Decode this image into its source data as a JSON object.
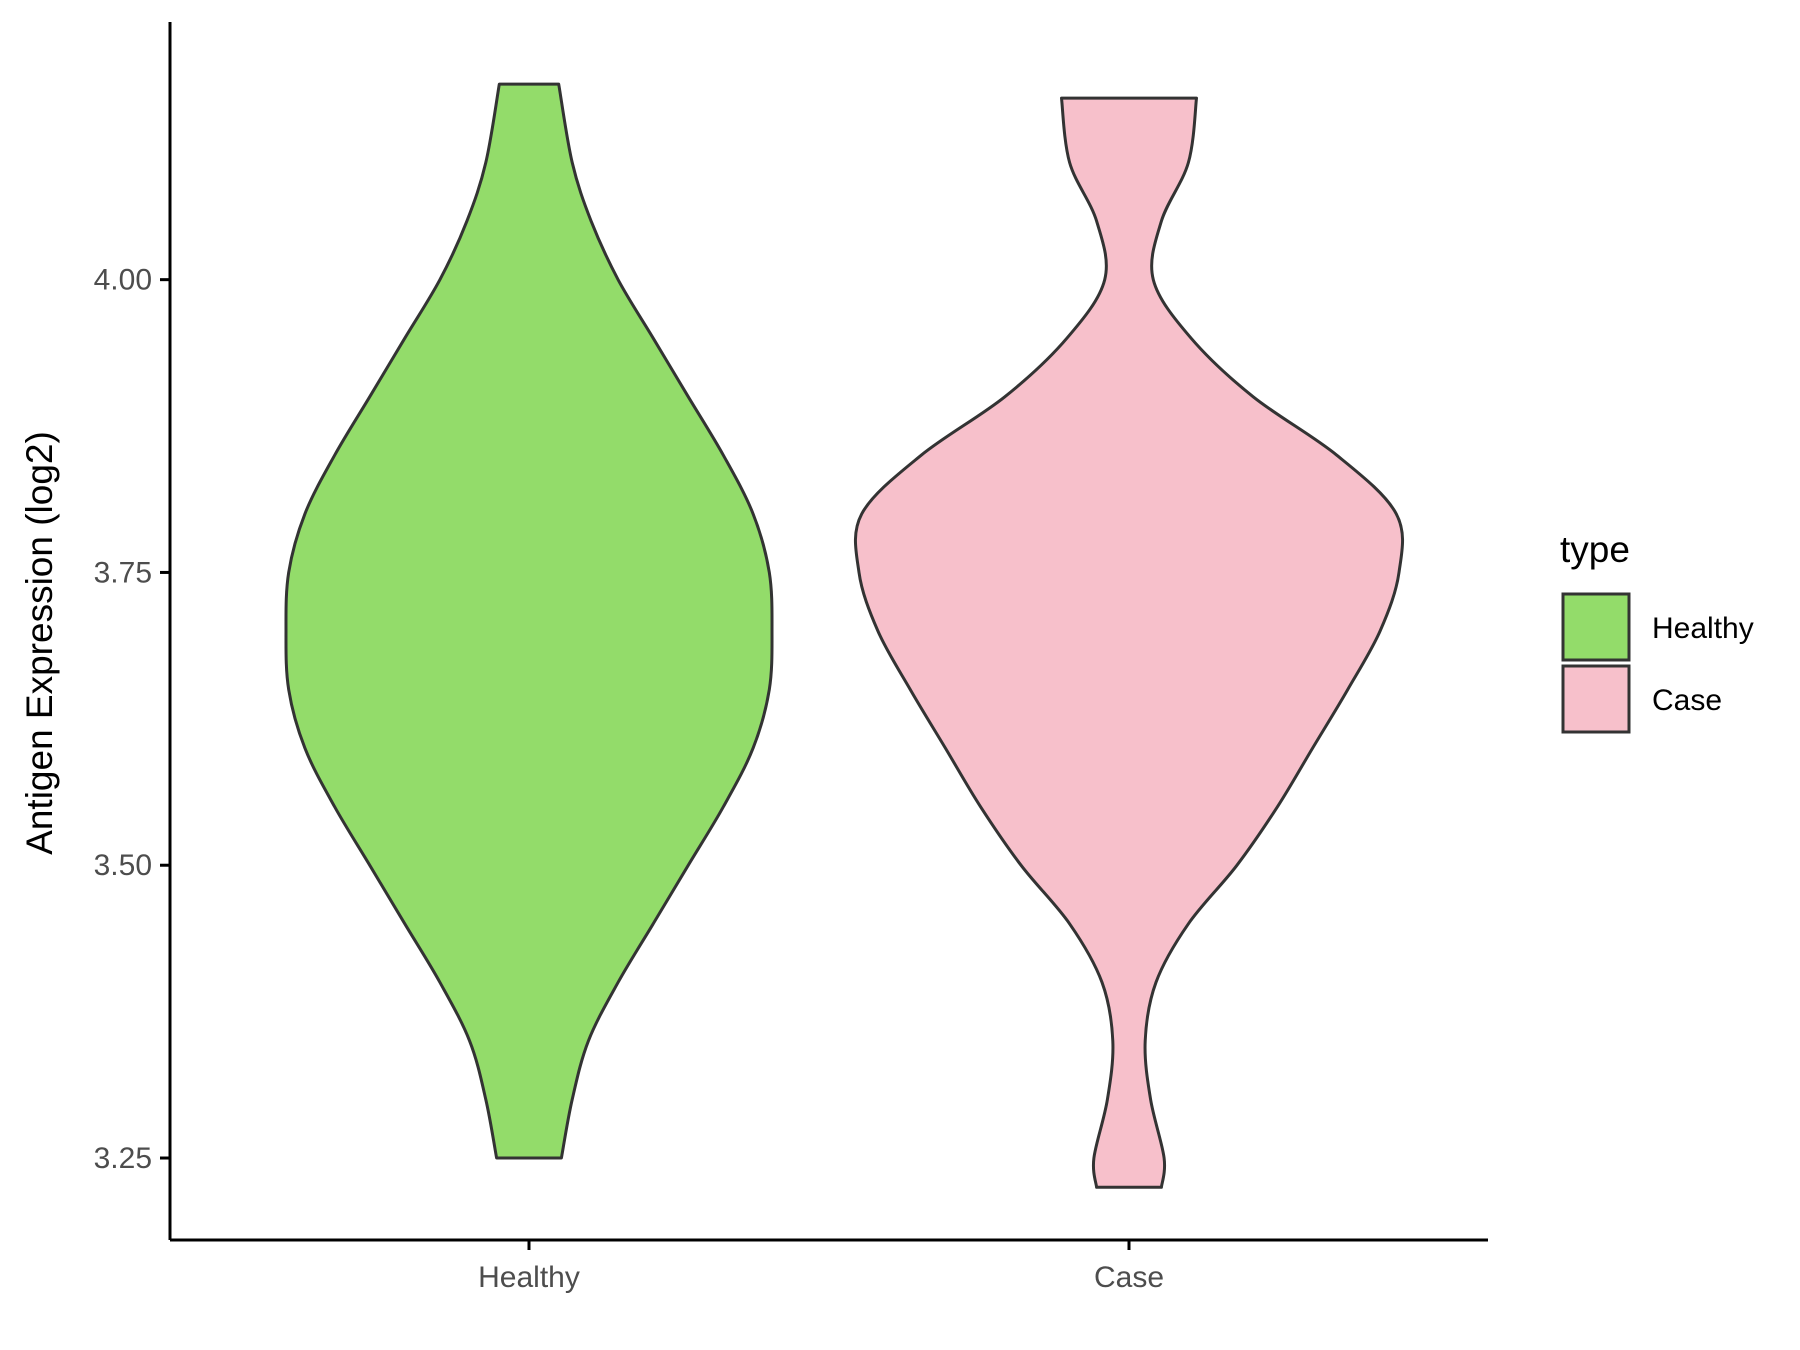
{
  "chart_data": {
    "type": "violin",
    "title": "",
    "xlabel": "",
    "ylabel": "Antigen Expression (log2)",
    "ylim": [
      3.18,
      4.22
    ],
    "yticks": [
      "3.25",
      "3.50",
      "3.75",
      "4.00"
    ],
    "ytick_values": [
      3.25,
      3.5,
      3.75,
      4.0
    ],
    "categories": [
      "Healthy",
      "Case"
    ],
    "legend": {
      "title": "type",
      "placement": "right",
      "items": [
        {
          "label": "Healthy",
          "color": "#93dc6a"
        },
        {
          "label": "Case",
          "color": "#f7c0cb"
        }
      ]
    },
    "series": [
      {
        "name": "Healthy",
        "color": "#93dc6a",
        "min": 3.25,
        "max": 4.167,
        "density_profile": [
          [
            3.25,
            0.12
          ],
          [
            3.3,
            0.16
          ],
          [
            3.35,
            0.22
          ],
          [
            3.4,
            0.33
          ],
          [
            3.45,
            0.46
          ],
          [
            3.5,
            0.59
          ],
          [
            3.55,
            0.72
          ],
          [
            3.6,
            0.83
          ],
          [
            3.65,
            0.89
          ],
          [
            3.7,
            0.9
          ],
          [
            3.75,
            0.89
          ],
          [
            3.8,
            0.83
          ],
          [
            3.85,
            0.72
          ],
          [
            3.9,
            0.59
          ],
          [
            3.95,
            0.46
          ],
          [
            4.0,
            0.33
          ],
          [
            4.05,
            0.23
          ],
          [
            4.1,
            0.16
          ],
          [
            4.167,
            0.11
          ]
        ]
      },
      {
        "name": "Case",
        "color": "#f7c0cb",
        "min": 3.225,
        "max": 4.155,
        "density_profile": [
          [
            3.225,
            0.12
          ],
          [
            3.25,
            0.13
          ],
          [
            3.3,
            0.08
          ],
          [
            3.35,
            0.06
          ],
          [
            3.4,
            0.1
          ],
          [
            3.45,
            0.22
          ],
          [
            3.5,
            0.4
          ],
          [
            3.55,
            0.55
          ],
          [
            3.6,
            0.68
          ],
          [
            3.65,
            0.81
          ],
          [
            3.7,
            0.93
          ],
          [
            3.75,
            1.0
          ],
          [
            3.8,
            0.99
          ],
          [
            3.85,
            0.77
          ],
          [
            3.9,
            0.46
          ],
          [
            3.95,
            0.23
          ],
          [
            4.0,
            0.09
          ],
          [
            4.05,
            0.12
          ],
          [
            4.1,
            0.22
          ],
          [
            4.155,
            0.25
          ]
        ]
      }
    ]
  }
}
